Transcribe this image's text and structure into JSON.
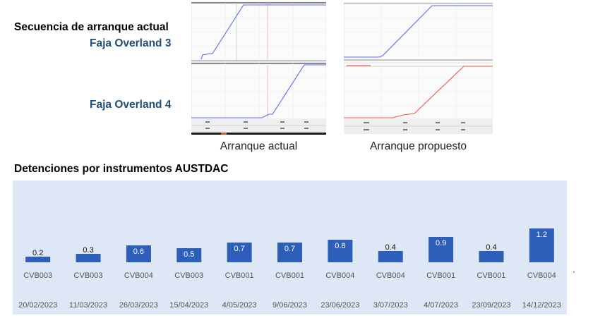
{
  "header": {
    "sequence_label": "Secuencia de arranque actual",
    "faja3_label": "Faja Overland 3",
    "faja4_label": "Faja Overland 4"
  },
  "captions": {
    "actual": "Arranque actual",
    "proposed": "Arranque propuesto"
  },
  "colors": {
    "label_blue": "#1f4e79",
    "trace_blue": "#5a68f0",
    "trace_red": "#f0584a",
    "bar_fill": "#2e5fb8",
    "chart_bg": "#dde7f5"
  },
  "chart_data": {
    "type": "bar",
    "title": "Detenciones  por instrumentos AUSTDAC",
    "categories": [
      "20/02/2023",
      "11/03/2023",
      "26/03/2023",
      "15/04/2023",
      "4/05/2023",
      "9/06/2023",
      "23/06/2023",
      "3/07/2023",
      "4/07/2023",
      "23/09/2023",
      "14/12/2023"
    ],
    "equipment": [
      "CVB003",
      "CVB003",
      "CVB004",
      "CVB003",
      "CVB001",
      "CVB001",
      "CVB004",
      "CVB004",
      "CVB001",
      "CVB001",
      "CVB004"
    ],
    "values": [
      0.2,
      0.3,
      0.6,
      0.5,
      0.7,
      0.7,
      0.8,
      0.4,
      0.9,
      0.4,
      1.2
    ],
    "value_labels": [
      "0.2",
      "0.3",
      "0.6",
      "0.5",
      "0.7",
      "0.7",
      "0.8",
      "0.4",
      "0.9",
      "0.4",
      "1.2"
    ],
    "ylim": [
      0,
      1.2
    ],
    "xlabel": "",
    "ylabel": "",
    "grid": false
  },
  "axis_tick": "'"
}
